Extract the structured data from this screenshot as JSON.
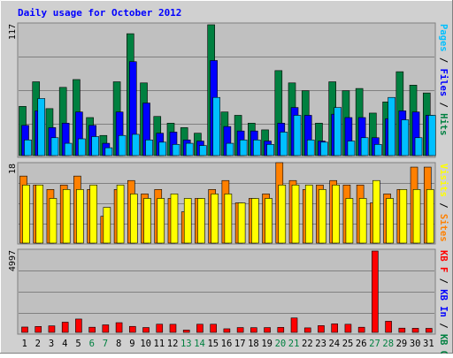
{
  "chart_data": [
    {
      "type": "bar",
      "title": "Daily usage for October 2012",
      "ymax_label": "117",
      "ylabel_parts": [
        {
          "text": "Pages",
          "color": "#00c0ff"
        },
        {
          "text": " / ",
          "color": "#000000"
        },
        {
          "text": "Files",
          "color": "#0000ff"
        },
        {
          "text": " / ",
          "color": "#000000"
        },
        {
          "text": "Hits",
          "color": "#008040"
        }
      ],
      "series": [
        {
          "name": "Hits",
          "color": "#008040",
          "values": [
            44,
            66,
            42,
            61,
            68,
            34,
            18,
            66,
            109,
            65,
            35,
            29,
            25,
            20,
            117,
            39,
            36,
            29,
            23,
            76,
            65,
            58,
            29,
            66,
            58,
            60,
            38,
            48,
            75,
            63,
            56
          ]
        },
        {
          "name": "Files",
          "color": "#0000ff",
          "values": [
            27,
            40,
            25,
            29,
            39,
            27,
            11,
            39,
            84,
            47,
            20,
            21,
            14,
            13,
            85,
            26,
            22,
            22,
            13,
            29,
            43,
            36,
            13,
            37,
            34,
            34,
            16,
            33,
            40,
            39,
            36
          ]
        },
        {
          "name": "Pages",
          "color": "#00c0ff",
          "values": [
            14,
            51,
            16,
            11,
            15,
            17,
            7,
            18,
            19,
            14,
            12,
            10,
            11,
            9,
            52,
            11,
            14,
            14,
            10,
            21,
            36,
            14,
            12,
            43,
            13,
            16,
            10,
            52,
            32,
            16,
            36
          ]
        }
      ]
    },
    {
      "type": "bar",
      "ymax_label": "18",
      "ylabel_parts": [
        {
          "text": "Visits",
          "color": "#ffff00"
        },
        {
          "text": " / ",
          "color": "#000000"
        },
        {
          "text": "Sites",
          "color": "#ff8000"
        }
      ],
      "series": [
        {
          "name": "Sites",
          "color": "#ff8000",
          "values": [
            15,
            13,
            12,
            13,
            15,
            12,
            6,
            12,
            14,
            11,
            12,
            10,
            7,
            10,
            12,
            14,
            9,
            10,
            11,
            18,
            14,
            12,
            13,
            14,
            13,
            13,
            9,
            11,
            12,
            17,
            17
          ]
        },
        {
          "name": "Visits",
          "color": "#ffff00",
          "values": [
            13,
            13,
            10,
            12,
            12,
            13,
            8,
            13,
            11,
            10,
            10,
            11,
            10,
            10,
            11,
            11,
            9,
            10,
            10,
            13,
            13,
            13,
            12,
            13,
            10,
            10,
            14,
            10,
            12,
            12,
            12
          ]
        }
      ]
    },
    {
      "type": "bar",
      "ymax_label": "4997",
      "ylabel_parts": [
        {
          "text": "KB F",
          "color": "#ff0000"
        },
        {
          "text": " / ",
          "color": "#000000"
        },
        {
          "text": "KB In",
          "color": "#0000ff"
        },
        {
          "text": " / ",
          "color": "#000000"
        },
        {
          "text": "KB Out",
          "color": "#008040"
        }
      ],
      "series": [
        {
          "name": "KB F",
          "color": "#ff0000",
          "values": [
            328,
            363,
            400,
            626,
            819,
            316,
            462,
            596,
            367,
            298,
            502,
            496,
            145,
            500,
            500,
            220,
            296,
            290,
            295,
            307,
            885,
            277,
            416,
            525,
            498,
            315,
            4997,
            684,
            260,
            251,
            246
          ]
        }
      ]
    }
  ],
  "days": [
    {
      "label": "1",
      "weekend": false
    },
    {
      "label": "2",
      "weekend": false
    },
    {
      "label": "3",
      "weekend": false
    },
    {
      "label": "4",
      "weekend": false
    },
    {
      "label": "5",
      "weekend": false
    },
    {
      "label": "6",
      "weekend": true
    },
    {
      "label": "7",
      "weekend": true
    },
    {
      "label": "8",
      "weekend": false
    },
    {
      "label": "9",
      "weekend": false
    },
    {
      "label": "10",
      "weekend": false
    },
    {
      "label": "11",
      "weekend": false
    },
    {
      "label": "12",
      "weekend": false
    },
    {
      "label": "13",
      "weekend": true
    },
    {
      "label": "14",
      "weekend": true
    },
    {
      "label": "15",
      "weekend": false
    },
    {
      "label": "16",
      "weekend": false
    },
    {
      "label": "17",
      "weekend": false
    },
    {
      "label": "18",
      "weekend": false
    },
    {
      "label": "19",
      "weekend": false
    },
    {
      "label": "20",
      "weekend": true
    },
    {
      "label": "21",
      "weekend": true
    },
    {
      "label": "22",
      "weekend": false
    },
    {
      "label": "23",
      "weekend": false
    },
    {
      "label": "24",
      "weekend": false
    },
    {
      "label": "25",
      "weekend": false
    },
    {
      "label": "26",
      "weekend": false
    },
    {
      "label": "27",
      "weekend": true
    },
    {
      "label": "28",
      "weekend": true
    },
    {
      "label": "29",
      "weekend": false
    },
    {
      "label": "30",
      "weekend": false
    },
    {
      "label": "31",
      "weekend": false
    }
  ],
  "colors": {
    "background": "#d0d0d0",
    "panel": "#c0c0c0",
    "grid": "#808080",
    "title": "#0000ff",
    "weekday_label": "#000000",
    "weekend_label": "#008040"
  }
}
